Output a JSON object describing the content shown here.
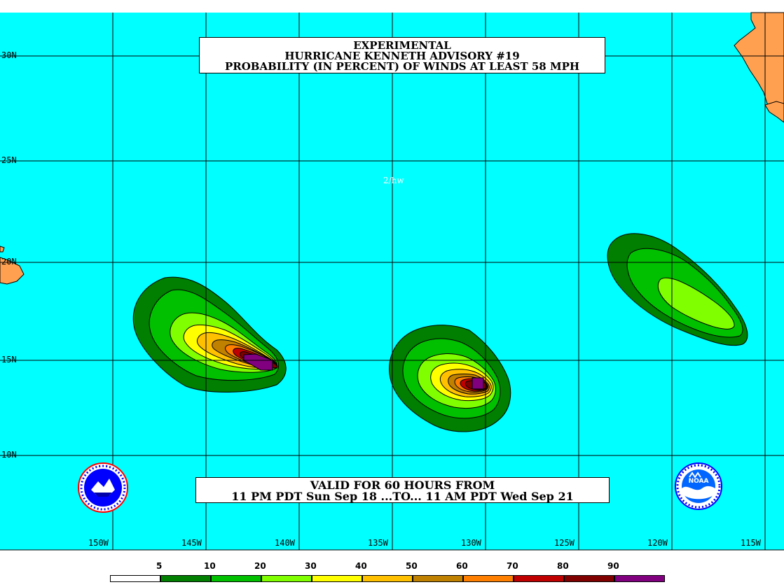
{
  "title": {
    "line1": "EXPERIMENTAL",
    "line2": "HURRICANE KENNETH ADVISORY #19",
    "line3": "PROBABILITY (IN PERCENT) OF WINDS AT LEAST 58 MPH"
  },
  "valid": {
    "line1": "VALID FOR 60 HOURS FROM",
    "line2": "11 PM PDT Sun Sep 18 ...TO... 11 AM PDT Wed Sep 21"
  },
  "credit": "2/hw",
  "lat_labels": [
    "30N",
    "25N",
    "20N",
    "15N",
    "10N"
  ],
  "lon_labels": [
    "150W",
    "145W",
    "140W",
    "135W",
    "130W",
    "125W",
    "120W",
    "115W"
  ],
  "legend": {
    "labels": [
      "5",
      "10",
      "20",
      "30",
      "40",
      "50",
      "60",
      "70",
      "80",
      "90"
    ],
    "colors": [
      "#ffffff",
      "#007f00",
      "#00c000",
      "#80ff00",
      "#ffff00",
      "#ffc000",
      "#c08000",
      "#ff8000",
      "#c00000",
      "#800000",
      "#800080"
    ]
  },
  "colors": {
    "ocean": "#00ffff",
    "land": "#ffa050",
    "grid": "#000000"
  },
  "logos": {
    "left": "national-weather-service-logo",
    "right": "noaa-logo"
  }
}
